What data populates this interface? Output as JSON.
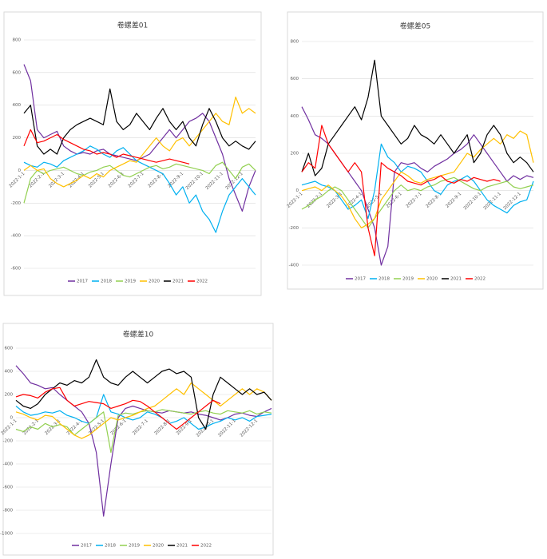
{
  "chart_data": [
    {
      "type": "line",
      "title": "卷螺差01",
      "categories": [
        "2022-1-1",
        null,
        null,
        "2022-2-1",
        null,
        null,
        "2022-3-1",
        null,
        null,
        "2022-4-1",
        null,
        null,
        "2022-5-1",
        null,
        null,
        "2022-6-1",
        null,
        null,
        "2022-7-1",
        null,
        null,
        "2022-8-1",
        null,
        null,
        "2022-9-1",
        null,
        null,
        "2022-10-1",
        null,
        null,
        "2022-11-1",
        null,
        null,
        "2022-12-1",
        null,
        null
      ],
      "ylim": [
        -600,
        800
      ],
      "yticks": [
        -600,
        -400,
        -200,
        0,
        200,
        400,
        600,
        800
      ],
      "grid": true,
      "legend": "bottom",
      "series": [
        {
          "name": "2017",
          "color": "#7030a0",
          "values": [
            650,
            550,
            250,
            200,
            220,
            240,
            150,
            120,
            100,
            110,
            100,
            120,
            130,
            100,
            90,
            80,
            70,
            60,
            80,
            100,
            150,
            200,
            250,
            200,
            250,
            300,
            320,
            350,
            300,
            200,
            100,
            -50,
            -150,
            -250,
            -100,
            0
          ]
        },
        {
          "name": "2018",
          "color": "#00b0f0",
          "values": [
            50,
            30,
            20,
            50,
            40,
            20,
            60,
            80,
            100,
            120,
            150,
            130,
            100,
            80,
            120,
            140,
            100,
            60,
            40,
            20,
            0,
            -20,
            -80,
            -150,
            -100,
            -200,
            -150,
            -250,
            -300,
            -380,
            -250,
            -150,
            -100,
            -50,
            -100,
            -150
          ]
        },
        {
          "name": "2019",
          "color": "#92d050",
          "values": [
            -200,
            -50,
            0,
            -20,
            0,
            10,
            20,
            0,
            -20,
            -30,
            -10,
            0,
            20,
            30,
            0,
            -30,
            -40,
            -20,
            0,
            20,
            30,
            10,
            20,
            40,
            30,
            20,
            10,
            0,
            -20,
            30,
            50,
            0,
            -50,
            20,
            40,
            0
          ]
        },
        {
          "name": "2020",
          "color": "#ffc000",
          "values": [
            0,
            30,
            0,
            10,
            -50,
            -80,
            -100,
            -80,
            -60,
            -30,
            -50,
            -20,
            -40,
            0,
            20,
            40,
            60,
            50,
            100,
            150,
            200,
            150,
            120,
            180,
            200,
            150,
            200,
            250,
            300,
            350,
            300,
            280,
            450,
            350,
            380,
            350
          ]
        },
        {
          "name": "2021",
          "color": "#000000",
          "values": [
            350,
            400,
            150,
            100,
            130,
            100,
            200,
            250,
            280,
            300,
            320,
            300,
            280,
            500,
            300,
            250,
            280,
            350,
            300,
            250,
            320,
            380,
            300,
            250,
            300,
            200,
            150,
            280,
            380,
            300,
            200,
            150,
            180,
            150,
            130,
            180
          ]
        },
        {
          "name": "2022",
          "color": "#ff0000",
          "values": [
            150,
            250,
            170,
            180,
            200,
            220,
            190,
            170,
            150,
            130,
            120,
            100,
            110,
            100,
            80,
            100,
            90,
            80,
            70,
            60,
            50,
            60,
            70,
            60,
            50,
            40,
            null,
            null,
            null,
            null,
            null,
            null,
            null,
            null,
            null,
            null
          ]
        }
      ]
    },
    {
      "type": "line",
      "title": "卷螺差05",
      "categories": [
        "2022-1-1",
        null,
        null,
        "2022-2-1",
        null,
        null,
        "2022-3-1",
        null,
        null,
        "2022-4-1",
        null,
        null,
        "2022-5-1",
        null,
        null,
        "2022-6-1",
        null,
        null,
        "2022-7-1",
        null,
        null,
        "2022-8-1",
        null,
        null,
        "2022-9-1",
        null,
        null,
        "2022-10-1",
        null,
        null,
        "2022-11-1",
        null,
        null,
        "2022-12-1",
        null,
        null
      ],
      "ylim": [
        -400,
        800
      ],
      "yticks": [
        -400,
        -200,
        0,
        200,
        400,
        600,
        800
      ],
      "grid": true,
      "legend": "bottom",
      "series": [
        {
          "name": "2017",
          "color": "#7030a0",
          "values": [
            450,
            380,
            300,
            280,
            250,
            200,
            150,
            100,
            50,
            0,
            -100,
            -200,
            -400,
            -300,
            100,
            150,
            140,
            150,
            120,
            100,
            130,
            150,
            170,
            200,
            220,
            250,
            300,
            250,
            200,
            150,
            100,
            50,
            80,
            60,
            80,
            70
          ]
        },
        {
          "name": "2018",
          "color": "#00b0f0",
          "values": [
            30,
            40,
            50,
            30,
            20,
            0,
            -50,
            -100,
            -80,
            -50,
            -150,
            0,
            250,
            180,
            150,
            100,
            130,
            120,
            100,
            50,
            0,
            -20,
            30,
            50,
            60,
            80,
            50,
            0,
            -50,
            -80,
            -100,
            -120,
            -80,
            -60,
            -50,
            50
          ]
        },
        {
          "name": "2019",
          "color": "#92d050",
          "values": [
            -100,
            -80,
            -50,
            -30,
            0,
            20,
            0,
            -50,
            -100,
            -150,
            -200,
            -150,
            -100,
            -50,
            0,
            30,
            0,
            10,
            0,
            20,
            30,
            50,
            60,
            70,
            50,
            30,
            10,
            0,
            20,
            30,
            40,
            50,
            20,
            10,
            20,
            30
          ]
        },
        {
          "name": "2020",
          "color": "#ffc000",
          "values": [
            0,
            10,
            20,
            0,
            30,
            0,
            -30,
            -80,
            -150,
            -200,
            -180,
            -150,
            -50,
            0,
            50,
            100,
            80,
            50,
            40,
            60,
            70,
            80,
            90,
            100,
            150,
            200,
            180,
            220,
            250,
            280,
            250,
            300,
            280,
            320,
            300,
            150
          ]
        },
        {
          "name": "2021",
          "color": "#000000",
          "values": [
            100,
            200,
            80,
            120,
            250,
            300,
            350,
            400,
            450,
            380,
            500,
            700,
            400,
            350,
            300,
            250,
            280,
            350,
            300,
            280,
            250,
            300,
            250,
            200,
            250,
            300,
            150,
            200,
            300,
            350,
            300,
            200,
            150,
            180,
            150,
            100
          ]
        },
        {
          "name": "2022",
          "color": "#ff0000",
          "values": [
            100,
            150,
            120,
            350,
            250,
            200,
            150,
            100,
            150,
            100,
            -200,
            -350,
            150,
            120,
            100,
            80,
            50,
            40,
            30,
            50,
            60,
            80,
            50,
            40,
            60,
            50,
            70,
            60,
            50,
            60,
            50,
            null,
            null,
            null,
            null,
            null
          ]
        }
      ]
    },
    {
      "type": "line",
      "title": "卷螺差10",
      "categories": [
        "2022-1-1",
        null,
        null,
        "2022-2-1",
        null,
        null,
        "2022-3-1",
        null,
        null,
        "2022-4-1",
        null,
        null,
        "2022-5-1",
        null,
        null,
        "2022-6-1",
        null,
        null,
        "2022-7-1",
        null,
        null,
        "2022-8-1",
        null,
        null,
        "2022-9-1",
        null,
        null,
        "2022-10-1",
        null,
        null,
        "2022-11-1",
        null,
        null,
        "2022-12-1",
        null,
        null
      ],
      "ylim": [
        -1000,
        600
      ],
      "yticks": [
        -1000,
        -800,
        -600,
        -400,
        -200,
        0,
        200,
        400,
        600
      ],
      "grid": true,
      "legend": "bottom",
      "series": [
        {
          "name": "2017",
          "color": "#7030a0",
          "values": [
            450,
            380,
            300,
            280,
            250,
            260,
            200,
            150,
            100,
            50,
            -50,
            -300,
            -850,
            -400,
            0,
            80,
            100,
            80,
            60,
            50,
            40,
            60,
            50,
            40,
            50,
            30,
            20,
            0,
            -20,
            0,
            30,
            40,
            20,
            10,
            50,
            80
          ]
        },
        {
          "name": "2018",
          "color": "#00b0f0",
          "values": [
            100,
            50,
            20,
            30,
            50,
            40,
            60,
            20,
            0,
            -30,
            -50,
            0,
            200,
            50,
            30,
            0,
            -20,
            0,
            50,
            30,
            0,
            -50,
            -30,
            0,
            -50,
            -100,
            -80,
            -50,
            -30,
            0,
            -20,
            0,
            -30,
            10,
            20,
            30
          ]
        },
        {
          "name": "2019",
          "color": "#92d050",
          "values": [
            -100,
            -120,
            -80,
            -100,
            -50,
            -80,
            -60,
            -80,
            -150,
            -100,
            -50,
            0,
            50,
            -300,
            20,
            40,
            30,
            50,
            60,
            50,
            70,
            60,
            50,
            40,
            30,
            50,
            60,
            40,
            30,
            60,
            50,
            40,
            60,
            30,
            50,
            40
          ]
        },
        {
          "name": "2020",
          "color": "#ffc000",
          "values": [
            50,
            30,
            0,
            -20,
            20,
            10,
            -50,
            -100,
            -150,
            -180,
            -150,
            -100,
            -50,
            0,
            -20,
            0,
            20,
            50,
            80,
            100,
            150,
            200,
            250,
            200,
            300,
            250,
            200,
            150,
            100,
            150,
            200,
            250,
            200,
            250,
            220,
            150
          ]
        },
        {
          "name": "2021",
          "color": "#000000",
          "values": [
            150,
            100,
            80,
            120,
            200,
            250,
            300,
            280,
            320,
            300,
            350,
            500,
            350,
            300,
            280,
            350,
            400,
            350,
            300,
            350,
            400,
            420,
            380,
            400,
            350,
            0,
            -100,
            200,
            350,
            300,
            250,
            200,
            250,
            200,
            220,
            150
          ]
        },
        {
          "name": "2022",
          "color": "#ff0000",
          "values": [
            180,
            200,
            190,
            170,
            220,
            250,
            260,
            150,
            100,
            120,
            140,
            130,
            120,
            80,
            100,
            120,
            150,
            140,
            100,
            50,
            0,
            -50,
            -100,
            -50,
            0,
            50,
            100,
            150,
            120,
            null,
            null,
            null,
            null,
            null,
            null,
            null
          ]
        }
      ]
    }
  ]
}
